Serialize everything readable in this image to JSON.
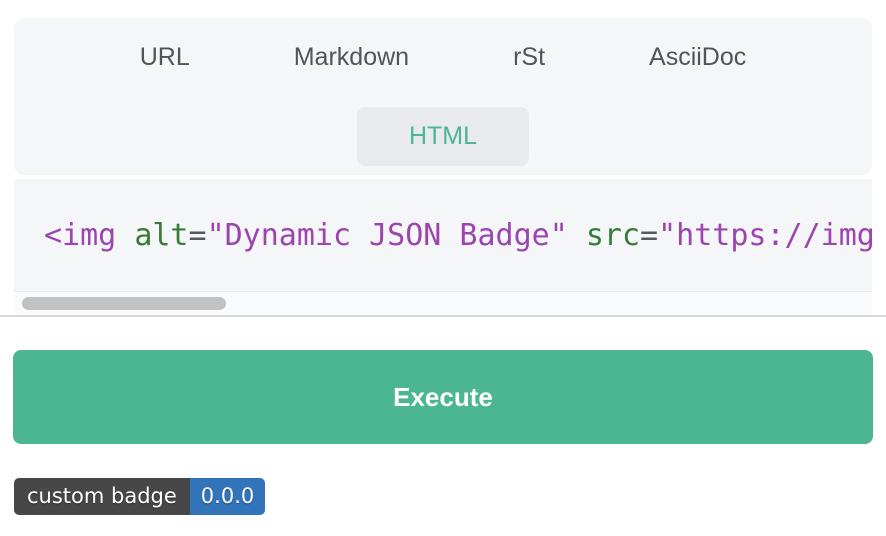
{
  "tabs": {
    "items": [
      {
        "label": "URL",
        "active": false
      },
      {
        "label": "Markdown",
        "active": false
      },
      {
        "label": "rSt",
        "active": false
      },
      {
        "label": "AsciiDoc",
        "active": false
      },
      {
        "label": "HTML",
        "active": true
      }
    ],
    "active_label": "HTML"
  },
  "code": {
    "visible_text": "<img alt=\"Dynamic JSON Badge\" src=\"https://img",
    "tokens": [
      {
        "text": "<img",
        "type": "tag"
      },
      {
        "text": " ",
        "type": "plain"
      },
      {
        "text": "alt",
        "type": "attr"
      },
      {
        "text": "=",
        "type": "punct"
      },
      {
        "text": "\"Dynamic JSON Badge\"",
        "type": "string"
      },
      {
        "text": " ",
        "type": "plain"
      },
      {
        "text": "src",
        "type": "attr"
      },
      {
        "text": "=",
        "type": "punct"
      },
      {
        "text": "\"https://img",
        "type": "string"
      }
    ]
  },
  "execute_button": {
    "label": "Execute"
  },
  "badge": {
    "label": "custom badge",
    "value": "0.0.0",
    "label_bg": "#474747",
    "value_bg": "#3274b9"
  },
  "colors": {
    "accent_green": "#4bb691",
    "card_bg": "#f5f6f8",
    "active_tab_bg": "#e9eaec",
    "tab_text": "#50555a",
    "code_tag_purple": "#9c44b0",
    "code_attr_green": "#377d37",
    "scrollbar_thumb": "#c2c2c2"
  }
}
